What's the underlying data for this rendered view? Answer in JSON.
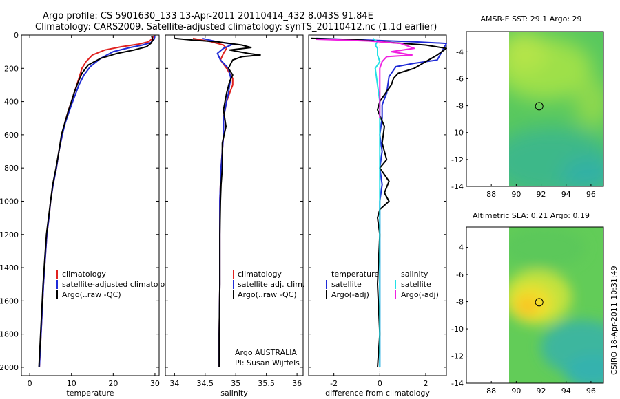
{
  "title_line1": "Argo profile: CS 5901630_133 13-Apr-2011 20110414_432 8.043S 91.84E",
  "title_line2": "Climatology: CARS2009. Satellite-adjusted climatology: synTS_20110412.nc (1.1d earlier)",
  "side_label": "CSIRO 18-Apr-2011 10:31:49",
  "colors": {
    "climatology": "#e0211f",
    "satellite": "#1f2bd6",
    "argo": "#000000",
    "cyan": "#22e0e6",
    "magenta": "#f020e0"
  },
  "chart_data": [
    {
      "id": "temperature",
      "type": "line",
      "xlabel": "temperature",
      "xlim": [
        -2,
        31
      ],
      "ylim": [
        2050,
        0
      ],
      "x_ticks": [
        0,
        10,
        20,
        30
      ],
      "y_ticks": [
        0,
        200,
        400,
        600,
        800,
        1000,
        1200,
        1400,
        1600,
        1800,
        2000
      ],
      "legend": [
        "climatology",
        "satellite-adjusted climatology",
        "Argo(..raw -QC)"
      ],
      "series": [
        {
          "name": "climatology",
          "color": "#e0211f",
          "points": [
            [
              29.7,
              5
            ],
            [
              29.4,
              20
            ],
            [
              28.5,
              40
            ],
            [
              26,
              55
            ],
            [
              22,
              70
            ],
            [
              18,
              90
            ],
            [
              15,
              120
            ],
            [
              13.5,
              160
            ],
            [
              12.5,
              200
            ],
            [
              11.8,
              260
            ],
            [
              11,
              320
            ],
            [
              10,
              400
            ],
            [
              9.3,
              450
            ],
            [
              8.5,
              520
            ],
            [
              7.8,
              600
            ],
            [
              7,
              700
            ],
            [
              6.4,
              800
            ],
            [
              5.6,
              900
            ],
            [
              5,
              1000
            ],
            [
              4.6,
              1100
            ],
            [
              4.1,
              1200
            ],
            [
              3.7,
              1350
            ],
            [
              3.3,
              1500
            ],
            [
              3,
              1650
            ],
            [
              2.7,
              1800
            ],
            [
              2.5,
              1900
            ],
            [
              2.3,
              2000
            ]
          ]
        },
        {
          "name": "satellite-adjusted climatology",
          "color": "#1f2bd6",
          "points": [
            [
              30,
              5
            ],
            [
              29.8,
              25
            ],
            [
              29,
              45
            ],
            [
              27,
              60
            ],
            [
              24,
              75
            ],
            [
              20,
              100
            ],
            [
              17,
              140
            ],
            [
              14.5,
              190
            ],
            [
              13,
              240
            ],
            [
              11.8,
              300
            ],
            [
              10.9,
              360
            ],
            [
              10,
              420
            ],
            [
              9.3,
              470
            ],
            [
              8.5,
              530
            ],
            [
              7.8,
              600
            ],
            [
              7,
              700
            ],
            [
              6.4,
              800
            ],
            [
              5.6,
              900
            ],
            [
              5,
              1000
            ],
            [
              4.6,
              1100
            ],
            [
              4.1,
              1200
            ],
            [
              3.7,
              1350
            ],
            [
              3.3,
              1500
            ],
            [
              3,
              1650
            ],
            [
              2.7,
              1800
            ],
            [
              2.5,
              1900
            ],
            [
              2.3,
              2000
            ]
          ]
        },
        {
          "name": "Argo(..raw -QC)",
          "color": "#000000",
          "points": [
            [
              29.2,
              5
            ],
            [
              29.5,
              30
            ],
            [
              29,
              50
            ],
            [
              28,
              70
            ],
            [
              25,
              90
            ],
            [
              21,
              110
            ],
            [
              17,
              140
            ],
            [
              14,
              180
            ],
            [
              12.5,
              230
            ],
            [
              11.5,
              290
            ],
            [
              10.6,
              350
            ],
            [
              10,
              400
            ],
            [
              9.2,
              460
            ],
            [
              8.5,
              520
            ],
            [
              7.6,
              600
            ],
            [
              7,
              700
            ],
            [
              6.3,
              800
            ],
            [
              5.5,
              900
            ],
            [
              5,
              1000
            ],
            [
              4.5,
              1100
            ],
            [
              4,
              1200
            ],
            [
              3.6,
              1350
            ],
            [
              3.2,
              1500
            ],
            [
              2.9,
              1650
            ],
            [
              2.6,
              1800
            ],
            [
              2.4,
              1900
            ],
            [
              2.2,
              2000
            ]
          ]
        }
      ]
    },
    {
      "id": "salinity",
      "type": "line",
      "xlabel": "salinity",
      "xlim": [
        33.85,
        36.1
      ],
      "ylim": [
        2050,
        0
      ],
      "x_ticks": [
        34,
        34.5,
        35,
        35.5,
        36
      ],
      "legend": [
        "climatology",
        "satellite adj. clim.",
        "Argo(..raw -QC)"
      ],
      "annotations": [
        "Argo AUSTRALIA",
        "PI: Susan Wijffels"
      ],
      "series": [
        {
          "name": "climatology",
          "color": "#e0211f",
          "points": [
            [
              34.3,
              20
            ],
            [
              34.6,
              40
            ],
            [
              34.8,
              60
            ],
            [
              34.85,
              80
            ],
            [
              34.8,
              110
            ],
            [
              34.75,
              150
            ],
            [
              34.85,
              200
            ],
            [
              34.95,
              260
            ],
            [
              34.95,
              300
            ],
            [
              34.9,
              350
            ],
            [
              34.85,
              400
            ],
            [
              34.8,
              500
            ],
            [
              34.8,
              600
            ],
            [
              34.78,
              700
            ],
            [
              34.76,
              800
            ],
            [
              34.75,
              900
            ],
            [
              34.74,
              1000
            ],
            [
              34.74,
              1200
            ],
            [
              34.74,
              1500
            ],
            [
              34.73,
              1800
            ],
            [
              34.73,
              2000
            ]
          ]
        },
        {
          "name": "satellite adj. clim.",
          "color": "#1f2bd6",
          "points": [
            [
              34.45,
              20
            ],
            [
              34.7,
              40
            ],
            [
              34.95,
              55
            ],
            [
              34.8,
              80
            ],
            [
              34.7,
              110
            ],
            [
              34.75,
              150
            ],
            [
              34.88,
              200
            ],
            [
              34.92,
              260
            ],
            [
              34.9,
              300
            ],
            [
              34.88,
              350
            ],
            [
              34.85,
              400
            ],
            [
              34.8,
              500
            ],
            [
              34.8,
              600
            ],
            [
              34.78,
              700
            ],
            [
              34.76,
              800
            ],
            [
              34.75,
              900
            ],
            [
              34.74,
              1000
            ],
            [
              34.74,
              1200
            ],
            [
              34.74,
              1500
            ],
            [
              34.73,
              1800
            ],
            [
              34.73,
              2000
            ]
          ]
        },
        {
          "name": "Argo(..raw -QC)",
          "color": "#000000",
          "points": [
            [
              34,
              20
            ],
            [
              34.3,
              30
            ],
            [
              34.7,
              40
            ],
            [
              35.1,
              60
            ],
            [
              35.25,
              75
            ],
            [
              34.9,
              90
            ],
            [
              35.2,
              110
            ],
            [
              35.4,
              120
            ],
            [
              35.1,
              130
            ],
            [
              34.95,
              150
            ],
            [
              34.88,
              200
            ],
            [
              34.95,
              240
            ],
            [
              34.9,
              280
            ],
            [
              34.85,
              350
            ],
            [
              34.8,
              450
            ],
            [
              34.84,
              550
            ],
            [
              34.78,
              650
            ],
            [
              34.78,
              800
            ],
            [
              34.76,
              900
            ],
            [
              34.75,
              1000
            ],
            [
              34.74,
              1200
            ],
            [
              34.74,
              1500
            ],
            [
              34.73,
              1800
            ],
            [
              34.73,
              2000
            ]
          ]
        }
      ]
    },
    {
      "id": "difference",
      "type": "line",
      "xlabel": "difference from climatology",
      "xlim": [
        -3.1,
        2.9
      ],
      "ylim": [
        2050,
        0
      ],
      "x_ticks": [
        -2,
        0,
        2
      ],
      "legend_left_title": "temperature",
      "legend_right_title": "salinity",
      "legend_left": [
        "satellite",
        "Argo(-adj)"
      ],
      "legend_right": [
        "satellite",
        "Argo(-adj)"
      ],
      "series": [
        {
          "name": "temperature satellite",
          "color": "#1f2bd6",
          "points": [
            [
              -2.8,
              20
            ],
            [
              -0.5,
              30
            ],
            [
              1.5,
              40
            ],
            [
              2.9,
              50
            ],
            [
              2.5,
              150
            ],
            [
              1.5,
              170
            ],
            [
              0.7,
              190
            ],
            [
              0.4,
              250
            ],
            [
              0.3,
              350
            ],
            [
              0.1,
              420
            ],
            [
              0.1,
              500
            ],
            [
              0,
              600
            ],
            [
              0.1,
              700
            ],
            [
              0,
              800
            ],
            [
              0.1,
              900
            ],
            [
              0,
              1000
            ],
            [
              0,
              1100
            ],
            [
              0,
              1200
            ],
            [
              0,
              1500
            ],
            [
              0,
              1800
            ],
            [
              0,
              2000
            ]
          ]
        },
        {
          "name": "temperature Argo(-adj)",
          "color": "#000000",
          "points": [
            [
              -3,
              20
            ],
            [
              -0.8,
              30
            ],
            [
              0.5,
              45
            ],
            [
              2,
              60
            ],
            [
              2.9,
              80
            ],
            [
              2.5,
              120
            ],
            [
              1.5,
              200
            ],
            [
              0.8,
              230
            ],
            [
              0.6,
              260
            ],
            [
              0.5,
              300
            ],
            [
              0,
              400
            ],
            [
              -0.1,
              450
            ],
            [
              0.2,
              550
            ],
            [
              0.1,
              650
            ],
            [
              0.3,
              750
            ],
            [
              0,
              800
            ],
            [
              0.4,
              880
            ],
            [
              0.2,
              950
            ],
            [
              0.4,
              1000
            ],
            [
              0,
              1050
            ],
            [
              -0.1,
              1100
            ],
            [
              0,
              1200
            ],
            [
              -0.1,
              1500
            ],
            [
              0,
              1800
            ],
            [
              -0.1,
              2000
            ]
          ]
        },
        {
          "name": "salinity satellite",
          "color": "#22e0e6",
          "points": [
            [
              -0.3,
              20
            ],
            [
              -0.1,
              40
            ],
            [
              -0.2,
              60
            ],
            [
              -0.1,
              80
            ],
            [
              -0.1,
              120
            ],
            [
              0,
              160
            ],
            [
              -0.2,
              200
            ],
            [
              -0.1,
              300
            ],
            [
              0,
              400
            ],
            [
              0,
              500
            ],
            [
              0,
              600
            ],
            [
              0,
              700
            ],
            [
              0,
              800
            ],
            [
              0,
              1000
            ],
            [
              0,
              1200
            ],
            [
              0,
              1500
            ],
            [
              0,
              1800
            ],
            [
              0,
              2000
            ]
          ]
        },
        {
          "name": "salinity Argo(-adj)",
          "color": "#f020e0",
          "points": [
            [
              -2.8,
              25
            ],
            [
              -0.5,
              35
            ],
            [
              0.9,
              50
            ],
            [
              1.5,
              80
            ],
            [
              0.5,
              100
            ],
            [
              1.4,
              120
            ],
            [
              0.3,
              130
            ],
            [
              0.1,
              160
            ],
            [
              0,
              200
            ],
            [
              0,
              300
            ],
            [
              0,
              400
            ],
            [
              0,
              500
            ]
          ]
        }
      ]
    },
    {
      "id": "sst_map",
      "type": "heatmap",
      "title": "AMSR-E SST: 29.1 Argo: 29",
      "xlim": [
        86,
        97
      ],
      "ylim": [
        -14,
        -2.5
      ],
      "x_ticks": [
        88,
        90,
        92,
        94,
        96
      ],
      "y_ticks": [
        -4,
        -6,
        -8,
        -10,
        -12,
        -14
      ],
      "marker": {
        "lon": 91.84,
        "lat": -8.043
      }
    },
    {
      "id": "sla_map",
      "type": "heatmap",
      "title": "Altimetric SLA: 0.21 Argo: 0.19",
      "xlim": [
        86,
        97
      ],
      "ylim": [
        -14,
        -2.5
      ],
      "x_ticks": [
        88,
        90,
        92,
        94,
        96
      ],
      "y_ticks": [
        -4,
        -6,
        -8,
        -10,
        -12,
        -14
      ],
      "marker": {
        "lon": 91.84,
        "lat": -8.043
      }
    }
  ]
}
